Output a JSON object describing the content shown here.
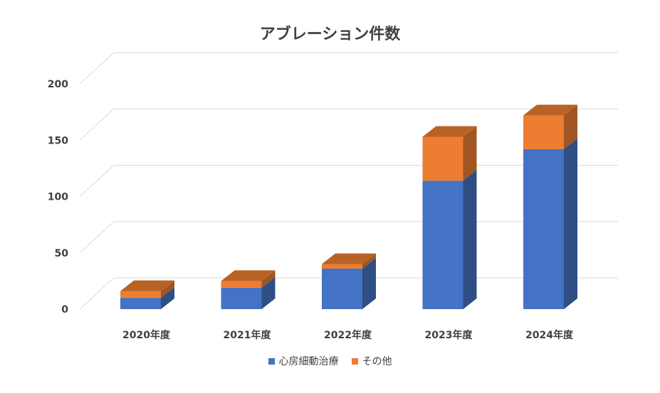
{
  "chart_data": {
    "type": "bar",
    "stacked": true,
    "three_d": true,
    "title": "アブレーション件数",
    "categories": [
      "2020年度",
      "2021年度",
      "2022年度",
      "2023年度",
      "2024年度"
    ],
    "series": [
      {
        "name": "心房細動治療",
        "values": [
          10,
          19,
          36,
          114,
          142
        ],
        "color": "#4472C4"
      },
      {
        "name": "その他",
        "values": [
          6,
          6,
          4,
          39,
          30
        ],
        "color": "#ED7D31"
      }
    ],
    "y_ticks": [
      0,
      50,
      100,
      150,
      200
    ],
    "ylim": [
      0,
      200
    ],
    "grid": true,
    "legend_position": "bottom"
  }
}
